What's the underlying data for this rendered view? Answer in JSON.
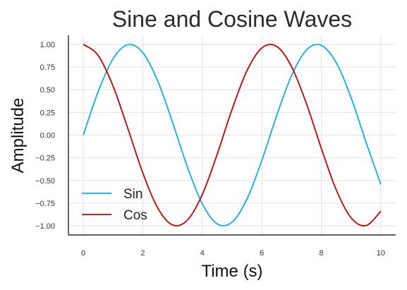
{
  "chart_data": {
    "type": "line",
    "title": "Sine and Cosine Waves",
    "xlabel": "Time (s)",
    "ylabel": "Amplitude",
    "xlim": [
      -0.5,
      10.5
    ],
    "ylim": [
      -1.1,
      1.1
    ],
    "x_ticks": [
      0,
      2,
      4,
      6,
      8,
      10
    ],
    "x_tick_labels": [
      "0",
      "2",
      "4",
      "6",
      "8",
      "10"
    ],
    "y_ticks": [
      1.0,
      0.75,
      0.5,
      0.25,
      0.0,
      -0.25,
      -0.5,
      -0.75,
      -1.0
    ],
    "y_tick_labels": [
      "1.00",
      "0.75",
      "0.50",
      "0.25",
      "0.00",
      "−0.25",
      "−0.50",
      "−0.75",
      "−1.00"
    ],
    "grid": true,
    "legend_position": "lower-left",
    "x": [
      0,
      0.5,
      1,
      1.5,
      2,
      2.5,
      3,
      3.5,
      4,
      4.5,
      5,
      5.5,
      6,
      6.5,
      7,
      7.5,
      8,
      8.5,
      9,
      9.5,
      10
    ],
    "series": [
      {
        "name": "Sin",
        "color": "#0ab0ec",
        "values": [
          0.0,
          0.479,
          0.841,
          0.997,
          0.909,
          0.598,
          0.141,
          -0.351,
          -0.757,
          -0.978,
          -0.959,
          -0.706,
          -0.279,
          0.215,
          0.657,
          0.938,
          0.989,
          0.798,
          0.412,
          -0.075,
          -0.544
        ]
      },
      {
        "name": "Cos",
        "color": "#cc0000",
        "values": [
          1.0,
          0.878,
          0.54,
          0.071,
          -0.416,
          -0.801,
          -0.99,
          -0.936,
          -0.654,
          -0.211,
          0.284,
          0.709,
          0.96,
          0.977,
          0.754,
          0.347,
          -0.146,
          -0.602,
          -0.911,
          -0.997,
          -0.839
        ]
      }
    ]
  }
}
